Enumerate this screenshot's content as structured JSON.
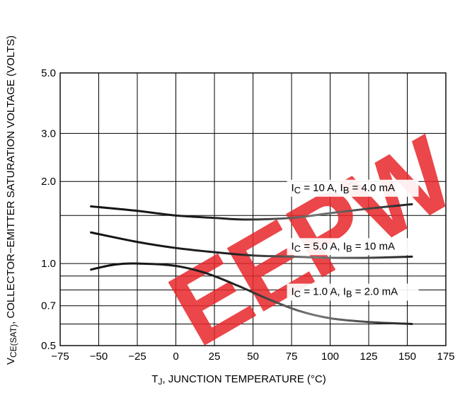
{
  "chart_data": {
    "type": "line",
    "title": "",
    "xlabel": "T<sub>J</sub>, JUNCTION TEMPERATURE (°C)",
    "xlabel_main": "T",
    "xlabel_sub": "J",
    "xlabel_rest": ", JUNCTION TEMPERATURE (°C)",
    "ylabel_main": "V",
    "ylabel_sub": "CE(SAT)",
    "ylabel_rest": ", COLLECTOR−EMITTER SATURATION VOLTAGE (VOLTS)",
    "xlim": [
      -75,
      175
    ],
    "ylim": [
      0.5,
      5.0
    ],
    "yscale": "log",
    "x_ticks": [
      -75,
      -50,
      -25,
      0,
      25,
      50,
      75,
      100,
      125,
      150,
      175
    ],
    "x_tick_labels": [
      "−75",
      "−50",
      "−25",
      "0",
      "25",
      "50",
      "75",
      "100",
      "125",
      "150",
      "175"
    ],
    "y_gridlines": [
      0.5,
      0.6,
      0.7,
      0.8,
      0.9,
      1.0,
      1.5,
      2.0,
      3.0,
      5.0
    ],
    "y_ticks": [
      0.5,
      0.7,
      1.0,
      2.0,
      3.0,
      5.0
    ],
    "y_tick_labels": [
      "0.5",
      "0.7",
      "1.0",
      "2.0",
      "3.0",
      "5.0"
    ],
    "grid": true,
    "watermark": "EEPW",
    "series": [
      {
        "name": "IC = 10 A, IB = 4.0 mA",
        "label_parts": [
          "I",
          "C",
          " = 10 A, I",
          "B",
          " = 4.0 mA"
        ],
        "label_anchor": [
          100,
          1.9
        ],
        "x": [
          -55,
          -25,
          0,
          25,
          45,
          75,
          100,
          125,
          153
        ],
        "y": [
          1.62,
          1.56,
          1.5,
          1.47,
          1.45,
          1.47,
          1.53,
          1.59,
          1.65
        ]
      },
      {
        "name": "IC = 5.0 A, IB = 10 mA",
        "label_parts": [
          "I",
          "C",
          " = 5.0 A, I",
          "B",
          " = 10 mA"
        ],
        "label_anchor": [
          100,
          1.16
        ],
        "x": [
          -55,
          -25,
          0,
          25,
          50,
          75,
          100,
          125,
          153
        ],
        "y": [
          1.3,
          1.2,
          1.14,
          1.1,
          1.07,
          1.06,
          1.05,
          1.05,
          1.06
        ]
      },
      {
        "name": "IC = 1.0 A, IB = 2.0 mA",
        "label_parts": [
          "I",
          "C",
          " = 1.0 A, I",
          "B",
          " = 2.0 mA"
        ],
        "label_anchor": [
          100,
          0.79
        ],
        "x": [
          -55,
          -40,
          -25,
          0,
          20,
          40,
          60,
          80,
          100,
          125,
          153
        ],
        "y": [
          0.95,
          0.99,
          1.0,
          0.98,
          0.92,
          0.83,
          0.74,
          0.67,
          0.63,
          0.61,
          0.6
        ]
      }
    ]
  }
}
